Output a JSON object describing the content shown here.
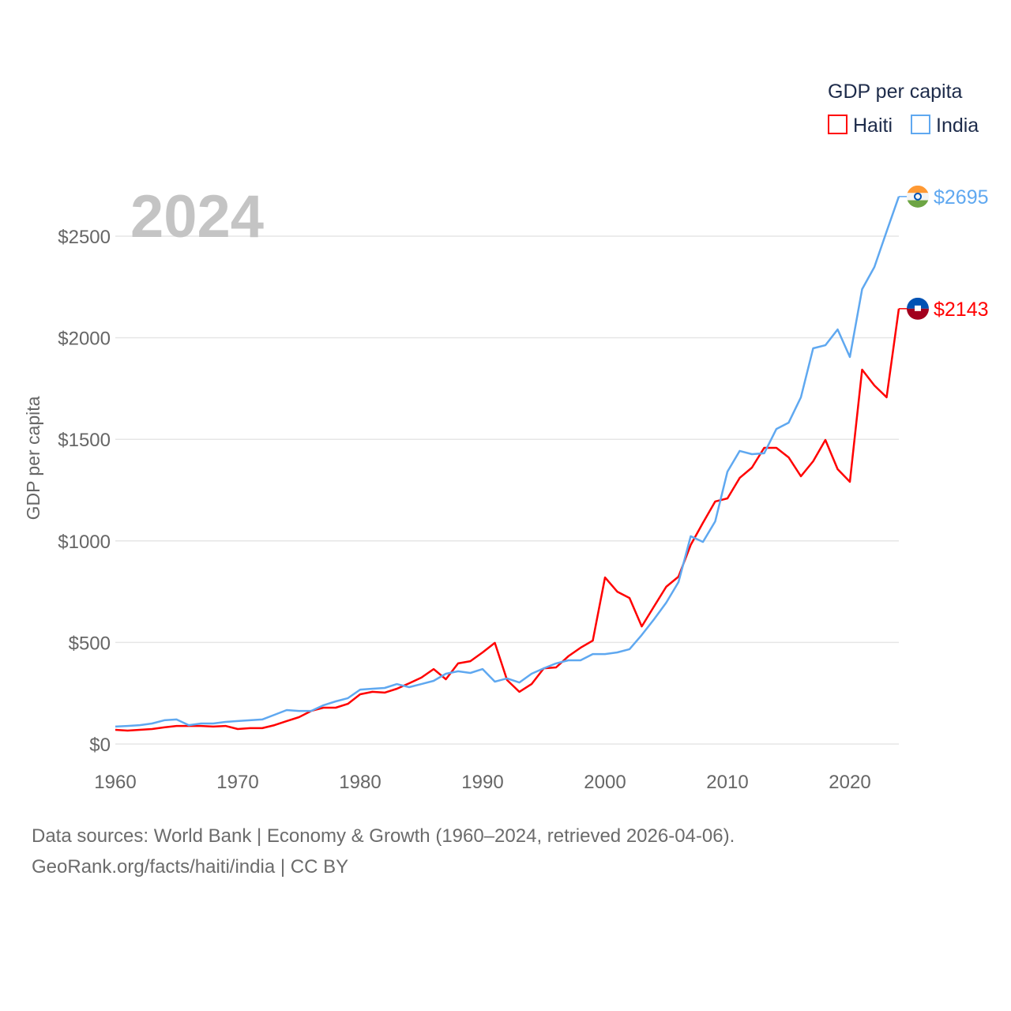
{
  "chart_data": {
    "type": "line",
    "title": "",
    "year_label": "2024",
    "xlabel": "",
    "ylabel": "GDP per capita",
    "legend_title": "GDP per capita",
    "legend_position": "top-right",
    "xlim": [
      1960,
      2024
    ],
    "ylim": [
      0,
      2750
    ],
    "x_ticks": [
      "1960",
      "1970",
      "1980",
      "1990",
      "2000",
      "2010",
      "2020"
    ],
    "y_ticks": [
      {
        "value": 0,
        "label": "$0"
      },
      {
        "value": 500,
        "label": "$500"
      },
      {
        "value": 1000,
        "label": "$1000"
      },
      {
        "value": 1500,
        "label": "$1500"
      },
      {
        "value": 2000,
        "label": "$2000"
      },
      {
        "value": 2500,
        "label": "$2500"
      }
    ],
    "grid": true,
    "x_start": 1960,
    "series": [
      {
        "name": "Haiti",
        "color": "#ff0000",
        "end_label": "$2143",
        "flag": "haiti-flag-icon",
        "values": [
          70,
          66,
          70,
          74,
          82,
          89,
          89,
          89,
          86,
          89,
          74,
          78,
          78,
          93,
          113,
          132,
          163,
          179,
          179,
          198,
          245,
          257,
          253,
          272,
          299,
          327,
          369,
          319,
          397,
          408,
          451,
          498,
          315,
          257,
          295,
          373,
          377,
          432,
          474,
          509,
          820,
          750,
          719,
          579,
          677,
          774,
          824,
          980,
          1089,
          1194,
          1209,
          1310,
          1361,
          1458,
          1458,
          1411,
          1318,
          1392,
          1497,
          1353,
          1291,
          1843,
          1765,
          1707,
          2143
        ]
      },
      {
        "name": "India",
        "color": "#5fa8f0",
        "end_label": "$2695",
        "flag": "india-flag-icon",
        "values": [
          86,
          89,
          93,
          101,
          117,
          121,
          93,
          101,
          101,
          109,
          113,
          117,
          121,
          144,
          167,
          163,
          163,
          191,
          210,
          226,
          268,
          272,
          276,
          295,
          280,
          295,
          311,
          346,
          358,
          350,
          369,
          307,
          323,
          303,
          346,
          373,
          397,
          412,
          412,
          443,
          443,
          451,
          467,
          537,
          614,
          696,
          797,
          1023,
          995,
          1096,
          1341,
          1443,
          1427,
          1431,
          1551,
          1582,
          1707,
          1948,
          1963,
          2041,
          1905,
          2239,
          2348,
          2523,
          2695
        ]
      }
    ]
  },
  "footer": {
    "line1": "Data sources: World Bank | Economy & Growth (1960–2024, retrieved 2026-04-06).",
    "line2": "GeoRank.org/facts/haiti/india | CC BY"
  }
}
